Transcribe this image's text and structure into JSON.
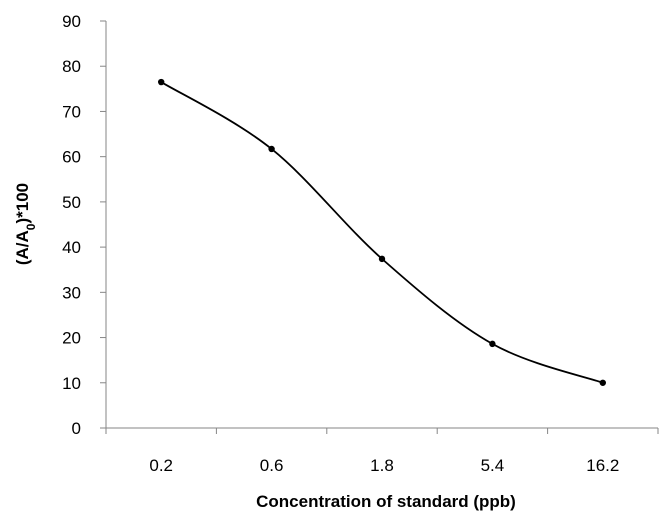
{
  "chart_data": {
    "type": "line",
    "categories": [
      "0.2",
      "0.6",
      "1.8",
      "5.4",
      "16.2"
    ],
    "series": [
      {
        "values": [
          76.5,
          61.7,
          37.4,
          18.6,
          10.0
        ]
      }
    ],
    "xlabel": "Concentration of standard (ppb)",
    "ylabel": "(A/A0)*100",
    "ylabel_parts": {
      "main": "(A/A",
      "subscript": "0",
      "suffix": ")*100"
    },
    "ylim": [
      0,
      90
    ],
    "yticks": [
      "0",
      "10",
      "20",
      "30",
      "40",
      "50",
      "60",
      "70",
      "80",
      "90"
    ],
    "grid": false,
    "legend": "none",
    "smooth": true,
    "colors": {
      "line": "#000000",
      "axis": "#868686",
      "marker": "#000000"
    }
  }
}
